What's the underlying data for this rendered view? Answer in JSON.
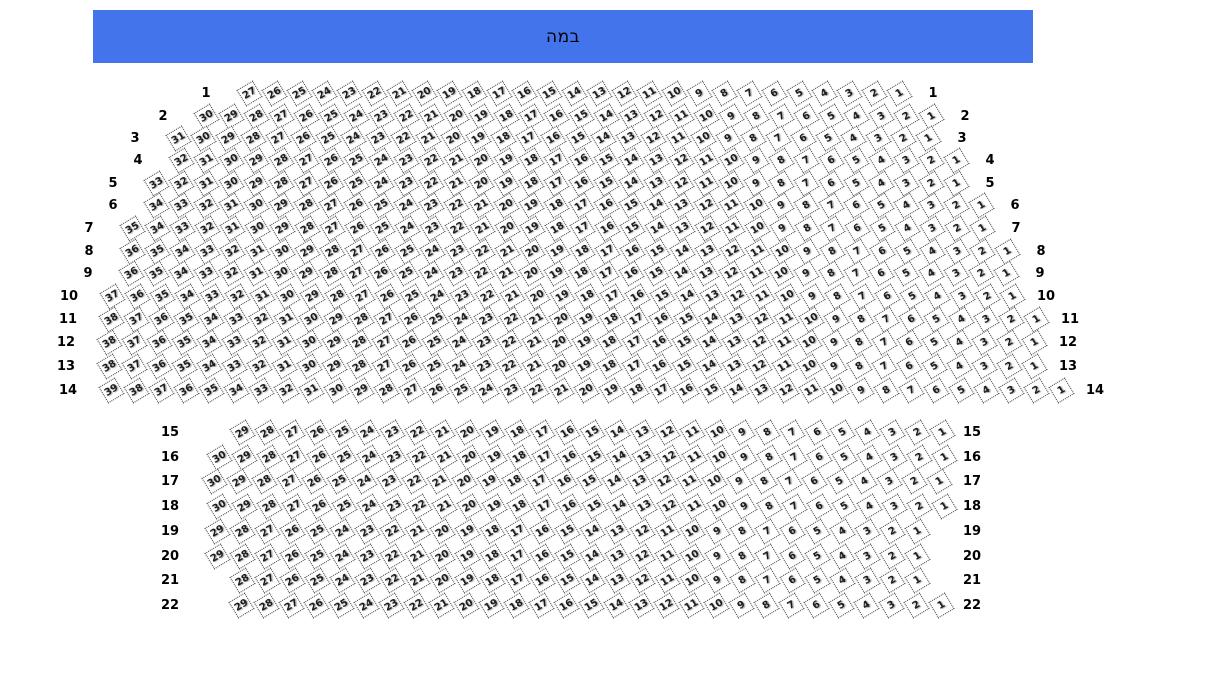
{
  "stage": {
    "label": "במה"
  },
  "colors": {
    "stage_bg": "#4374EC",
    "stage_text": "#000000",
    "seat_fill": "#ffffff",
    "seat_border": "#3c3c3c",
    "seat_number": "#1c1c1c",
    "row_label": "#000000"
  },
  "sections": [
    {
      "name": "upper",
      "rows": [
        {
          "label": "1",
          "seat_from": 27,
          "seat_to": 1
        },
        {
          "label": "2",
          "seat_from": 30,
          "seat_to": 1
        },
        {
          "label": "3",
          "seat_from": 31,
          "seat_to": 1
        },
        {
          "label": "4",
          "seat_from": 32,
          "seat_to": 1
        },
        {
          "label": "5",
          "seat_from": 33,
          "seat_to": 1
        },
        {
          "label": "6",
          "seat_from": 34,
          "seat_to": 1
        },
        {
          "label": "7",
          "seat_from": 35,
          "seat_to": 1
        },
        {
          "label": "8",
          "seat_from": 36,
          "seat_to": 1
        },
        {
          "label": "9",
          "seat_from": 36,
          "seat_to": 1
        },
        {
          "label": "10",
          "seat_from": 37,
          "seat_to": 1
        },
        {
          "label": "11",
          "seat_from": 38,
          "seat_to": 1
        },
        {
          "label": "12",
          "seat_from": 38,
          "seat_to": 1
        },
        {
          "label": "13",
          "seat_from": 38,
          "seat_to": 1
        },
        {
          "label": "14",
          "seat_from": 39,
          "seat_to": 1
        }
      ]
    },
    {
      "name": "lower",
      "rows": [
        {
          "label": "15",
          "seat_from": 29,
          "seat_to": 1
        },
        {
          "label": "16",
          "seat_from": 30,
          "seat_to": 1
        },
        {
          "label": "17",
          "seat_from": 30,
          "seat_to": 1
        },
        {
          "label": "18",
          "seat_from": 30,
          "seat_to": 1
        },
        {
          "label": "19",
          "seat_from": 29,
          "seat_to": 1
        },
        {
          "label": "20",
          "seat_from": 29,
          "seat_to": 1
        },
        {
          "label": "21",
          "seat_from": 28,
          "seat_to": 1
        },
        {
          "label": "22",
          "seat_from": 29,
          "seat_to": 1
        }
      ]
    }
  ]
}
